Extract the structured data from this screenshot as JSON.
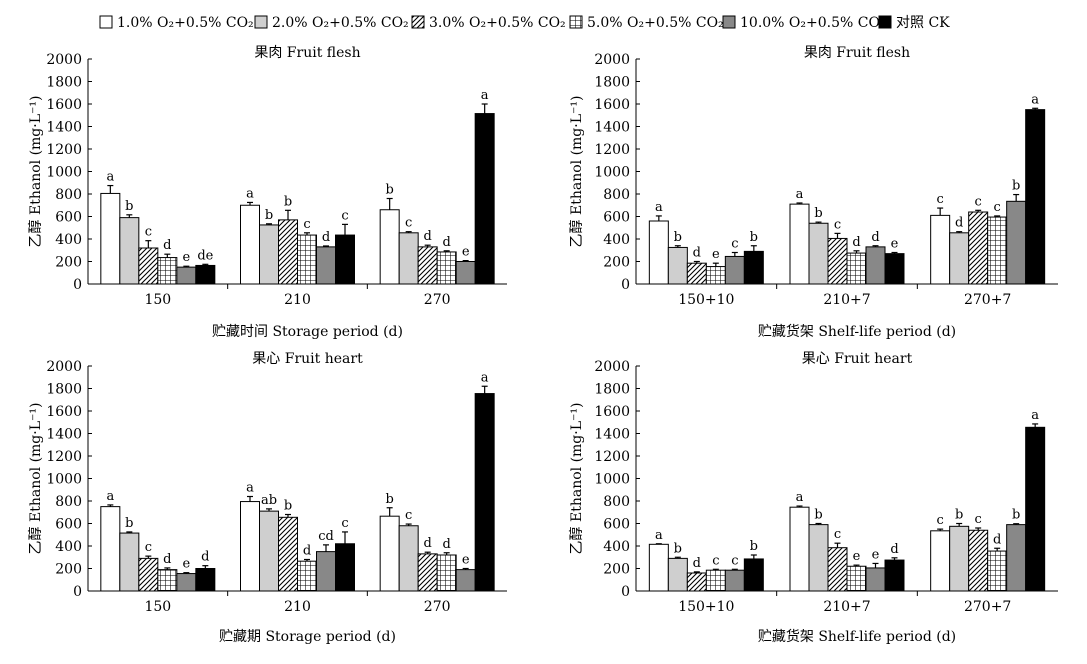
{
  "legend": [
    {
      "label": "1.0% O₂+0.5% CO₂",
      "pattern": "white"
    },
    {
      "label": "2.0% O₂+0.5% CO₂",
      "pattern": "lightgray"
    },
    {
      "label": "3.0% O₂+0.5% CO₂",
      "pattern": "hatch"
    },
    {
      "label": "5.0% O₂+0.5% CO₂",
      "pattern": "grid"
    },
    {
      "label": "10.0% O₂+0.5% CO₂",
      "pattern": "darkgray"
    },
    {
      "label": "对照 CK",
      "pattern": "black"
    }
  ],
  "colors": {
    "white": "#ffffff",
    "lightgray": "#cfcfcf",
    "darkgray": "#888888",
    "black": "#000000"
  },
  "chart_data": [
    {
      "type": "bar",
      "title": "果肉 Fruit flesh",
      "xlabel": "贮藏时间 Storage period (d)",
      "ylabel": "乙醇 Ethanol (mg·L⁻¹)",
      "ylim": [
        0,
        2000
      ],
      "yticks": [
        0,
        200,
        400,
        600,
        800,
        1000,
        1200,
        1400,
        1600,
        1800,
        2000
      ],
      "categories": [
        "150",
        "210",
        "270"
      ],
      "series": [
        {
          "name": "1.0% O₂+0.5% CO₂",
          "values": [
            805,
            700,
            660
          ],
          "errors": [
            70,
            25,
            100
          ],
          "letters": [
            "a",
            "a",
            "b"
          ]
        },
        {
          "name": "2.0% O₂+0.5% CO₂",
          "values": [
            590,
            525,
            455
          ],
          "errors": [
            25,
            10,
            10
          ],
          "letters": [
            "b",
            "b",
            "c"
          ]
        },
        {
          "name": "3.0% O₂+0.5% CO₂",
          "values": [
            320,
            570,
            330
          ],
          "errors": [
            65,
            85,
            15
          ],
          "letters": [
            "c",
            "b",
            "d"
          ]
        },
        {
          "name": "5.0% O₂+0.5% CO₂",
          "values": [
            235,
            435,
            285
          ],
          "errors": [
            30,
            20,
            10
          ],
          "letters": [
            "d",
            "c",
            "d"
          ]
        },
        {
          "name": "10.0% O₂+0.5% CO₂",
          "values": [
            150,
            330,
            200
          ],
          "errors": [
            8,
            8,
            8
          ],
          "letters": [
            "e",
            "d",
            "e"
          ]
        },
        {
          "name": "对照 CK",
          "values": [
            165,
            435,
            1515
          ],
          "errors": [
            10,
            95,
            85
          ],
          "letters": [
            "de",
            "c",
            "a"
          ]
        }
      ]
    },
    {
      "type": "bar",
      "title": "果肉 Fruit flesh",
      "xlabel": "贮藏货架 Shelf-life period (d)",
      "ylabel": "乙醇 Ethanol (mg·L⁻¹)",
      "ylim": [
        0,
        2000
      ],
      "yticks": [
        0,
        200,
        400,
        600,
        800,
        1000,
        1200,
        1400,
        1600,
        1800,
        2000
      ],
      "categories": [
        "150+10",
        "210+7",
        "270+7"
      ],
      "series": [
        {
          "name": "1.0% O₂+0.5% CO₂",
          "values": [
            560,
            710,
            610
          ],
          "errors": [
            45,
            10,
            65
          ],
          "letters": [
            "a",
            "a",
            "c"
          ]
        },
        {
          "name": "2.0% O₂+0.5% CO₂",
          "values": [
            325,
            540,
            455
          ],
          "errors": [
            15,
            10,
            10
          ],
          "letters": [
            "b",
            "b",
            "d"
          ]
        },
        {
          "name": "3.0% O₂+0.5% CO₂",
          "values": [
            185,
            405,
            640
          ],
          "errors": [
            15,
            45,
            15
          ],
          "letters": [
            "d",
            "c",
            "c"
          ]
        },
        {
          "name": "5.0% O₂+0.5% CO₂",
          "values": [
            155,
            275,
            595
          ],
          "errors": [
            30,
            20,
            10
          ],
          "letters": [
            "e",
            "d",
            "c"
          ]
        },
        {
          "name": "10.0% O₂+0.5% CO₂",
          "values": [
            245,
            330,
            735
          ],
          "errors": [
            35,
            10,
            60
          ],
          "letters": [
            "c",
            "d",
            "b"
          ]
        },
        {
          "name": "对照 CK",
          "values": [
            290,
            270,
            1550
          ],
          "errors": [
            50,
            10,
            12
          ],
          "letters": [
            "b",
            "e",
            "a"
          ]
        }
      ]
    },
    {
      "type": "bar",
      "title": "果心 Fruit heart",
      "xlabel": "贮藏期 Storage period (d)",
      "ylabel": "乙醇 Ethanol (mg·L⁻¹)",
      "ylim": [
        0,
        2000
      ],
      "yticks": [
        0,
        200,
        400,
        600,
        800,
        1000,
        1200,
        1400,
        1600,
        1800,
        2000
      ],
      "categories": [
        "150",
        "210",
        "270"
      ],
      "series": [
        {
          "name": "1.0% O₂+0.5% CO₂",
          "values": [
            750,
            795,
            665
          ],
          "errors": [
            15,
            45,
            75
          ],
          "letters": [
            "a",
            "a",
            "b"
          ]
        },
        {
          "name": "2.0% O₂+0.5% CO₂",
          "values": [
            515,
            710,
            580
          ],
          "errors": [
            10,
            20,
            15
          ],
          "letters": [
            "b",
            "ab",
            "c"
          ]
        },
        {
          "name": "3.0% O₂+0.5% CO₂",
          "values": [
            290,
            655,
            330
          ],
          "errors": [
            20,
            25,
            15
          ],
          "letters": [
            "c",
            "b",
            "d"
          ]
        },
        {
          "name": "5.0% O₂+0.5% CO₂",
          "values": [
            190,
            265,
            320
          ],
          "errors": [
            15,
            15,
            20
          ],
          "letters": [
            "d",
            "d",
            "d"
          ]
        },
        {
          "name": "10.0% O₂+0.5% CO₂",
          "values": [
            155,
            350,
            190
          ],
          "errors": [
            8,
            60,
            10
          ],
          "letters": [
            "e",
            "cd",
            "e"
          ]
        },
        {
          "name": "对照 CK",
          "values": [
            200,
            420,
            1755
          ],
          "errors": [
            25,
            105,
            65
          ],
          "letters": [
            "d",
            "c",
            "a"
          ]
        }
      ]
    },
    {
      "type": "bar",
      "title": "果心 Fruit heart",
      "xlabel": "贮藏货架 Shelf-life period (d)",
      "ylabel": "乙醇 Ethanol (mg·L⁻¹)",
      "ylim": [
        0,
        2000
      ],
      "yticks": [
        0,
        200,
        400,
        600,
        800,
        1000,
        1200,
        1400,
        1600,
        1800,
        2000
      ],
      "categories": [
        "150+10",
        "210+7",
        "270+7"
      ],
      "series": [
        {
          "name": "1.0% O₂+0.5% CO₂",
          "values": [
            415,
            745,
            535
          ],
          "errors": [
            5,
            10,
            15
          ],
          "letters": [
            "a",
            "a",
            "c"
          ]
        },
        {
          "name": "2.0% O₂+0.5% CO₂",
          "values": [
            290,
            590,
            575
          ],
          "errors": [
            10,
            10,
            25
          ],
          "letters": [
            "b",
            "b",
            "b"
          ]
        },
        {
          "name": "3.0% O₂+0.5% CO₂",
          "values": [
            160,
            385,
            540
          ],
          "errors": [
            10,
            40,
            20
          ],
          "letters": [
            "d",
            "c",
            "c"
          ]
        },
        {
          "name": "5.0% O₂+0.5% CO₂",
          "values": [
            185,
            220,
            355
          ],
          "errors": [
            8,
            10,
            25
          ],
          "letters": [
            "c",
            "e",
            "d"
          ]
        },
        {
          "name": "10.0% O₂+0.5% CO₂",
          "values": [
            185,
            205,
            590
          ],
          "errors": [
            8,
            40,
            8
          ],
          "letters": [
            "c",
            "e",
            "b"
          ]
        },
        {
          "name": "对照 CK",
          "values": [
            285,
            275,
            1455
          ],
          "errors": [
            35,
            20,
            30
          ],
          "letters": [
            "b",
            "d",
            "a"
          ]
        }
      ]
    }
  ]
}
